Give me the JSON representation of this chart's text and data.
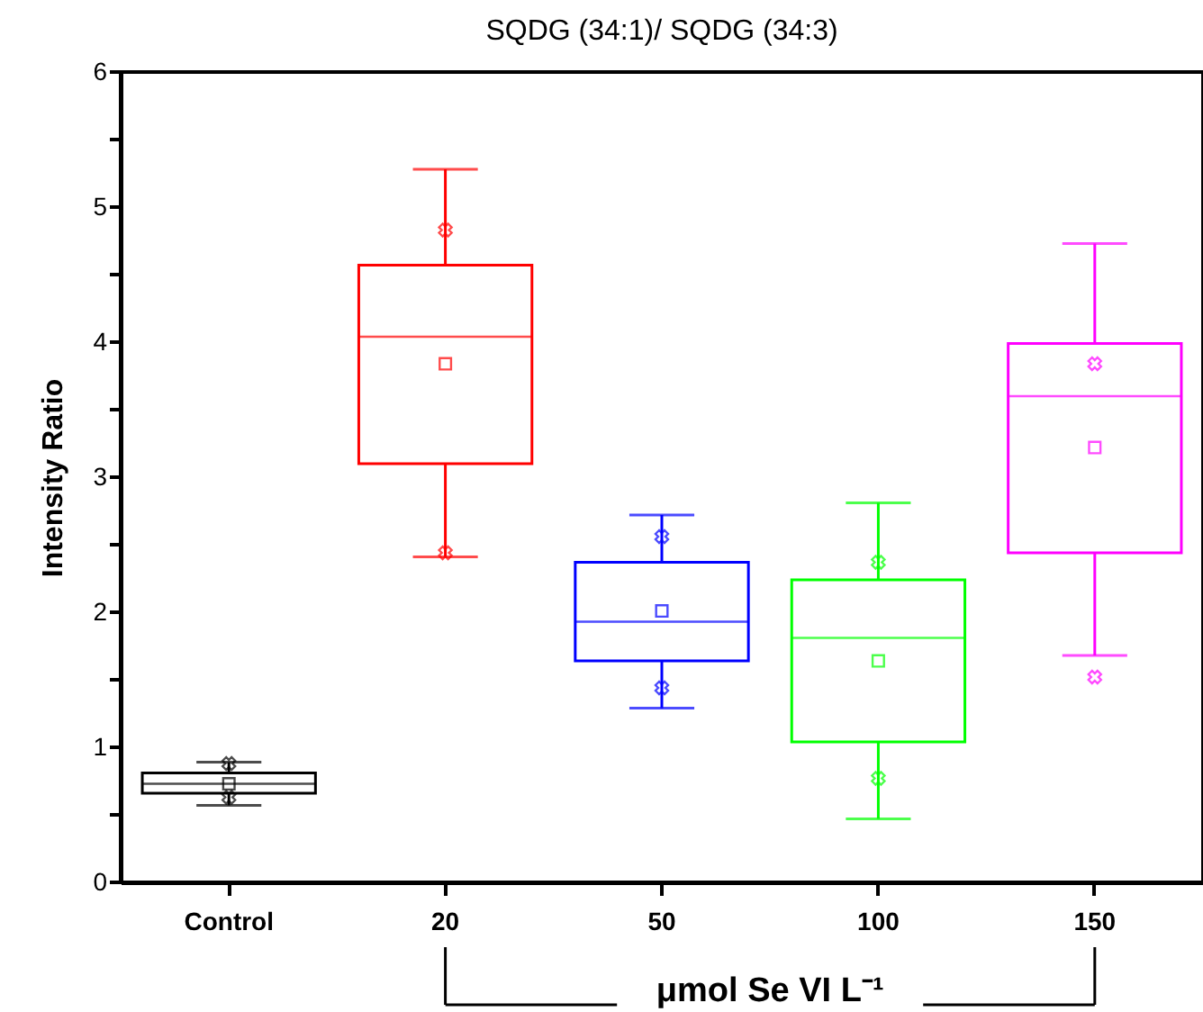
{
  "chart_data": {
    "type": "box",
    "title": "SQDG (34:1)/ SQDG (34:3)",
    "xlabel": "μmol Se VI L⁻¹",
    "ylabel": "Intensity Ratio",
    "categories": [
      "Control",
      "20",
      "50",
      "100",
      "150"
    ],
    "colors": [
      "#000000",
      "#ff0000",
      "#0000ff",
      "#00ff00",
      "#ff00ff"
    ],
    "boxes": [
      {
        "low": 0.57,
        "q1": 0.66,
        "median": 0.73,
        "q3": 0.81,
        "high": 0.89,
        "mean": 0.73,
        "outliers": [
          0.88,
          0.63
        ]
      },
      {
        "low": 2.41,
        "q1": 3.1,
        "median": 4.04,
        "q3": 4.57,
        "high": 5.28,
        "mean": 3.84,
        "outliers": [
          4.83,
          2.44
        ]
      },
      {
        "low": 1.29,
        "q1": 1.64,
        "median": 1.93,
        "q3": 2.37,
        "high": 2.72,
        "mean": 2.01,
        "outliers": [
          2.56,
          1.44
        ]
      },
      {
        "low": 0.47,
        "q1": 1.04,
        "median": 1.81,
        "q3": 2.24,
        "high": 2.81,
        "mean": 1.64,
        "outliers": [
          2.37,
          0.77
        ]
      },
      {
        "low": 1.68,
        "q1": 2.44,
        "median": 3.6,
        "q3": 3.99,
        "high": 4.73,
        "mean": 3.22,
        "outliers": [
          3.84,
          1.52
        ]
      }
    ],
    "ylim": [
      0,
      6
    ],
    "yticks": [
      0,
      {
        "value": 0.5,
        "label": null
      },
      1,
      {
        "value": 1.5,
        "label": null
      },
      2,
      {
        "value": 2.5,
        "label": null
      },
      3,
      {
        "value": 3.5,
        "label": null
      },
      4,
      {
        "value": 4.5,
        "label": null
      },
      5,
      {
        "value": 5.5,
        "label": null
      },
      6
    ],
    "marker": "square",
    "grid": false
  }
}
